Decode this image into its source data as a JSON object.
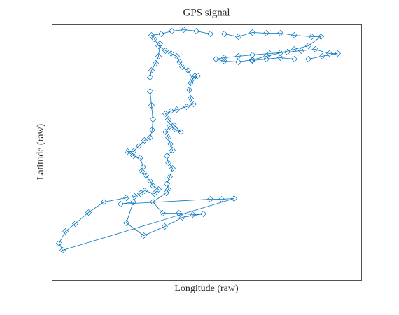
{
  "chart_data": {
    "type": "line",
    "title": "GPS  signal",
    "x_label": "Longitude  (raw)",
    "y_label": "Latitude  (raw)",
    "xlim": [
      0,
      442
    ],
    "ylim": [
      0,
      366
    ],
    "grid": false,
    "marker": "diamond",
    "series": [
      {
        "color": "#0072bd",
        "x": [
          154,
          152,
          148,
          142,
          140,
          140,
          142,
          144,
          143,
          140,
          132,
          124,
          116,
          108,
          116,
          126,
          130,
          128,
          134,
          140,
          144,
          152,
          146,
          132,
          126,
          118,
          106,
          74,
          52,
          33,
          19,
          10,
          15,
          260,
          242,
          226,
          98,
          116,
          106,
          131,
          161,
          186,
          216,
          201,
          181,
          158,
          144,
          163,
          166,
          164,
          168,
          172,
          166,
          164,
          172,
          169,
          166,
          162,
          168,
          176,
          184,
          174,
          166,
          162,
          170,
          178,
          192,
          202,
          198,
          196,
          198,
          204,
          208,
          201,
          194,
          186,
          182,
          178,
          170,
          162,
          152,
          146,
          142,
          156,
          171,
          188,
          206,
          226,
          246,
          266,
          286,
          306,
          326,
          346,
          371,
          384,
          366,
          346,
          326,
          306,
          286,
          266,
          246,
          234,
          246,
          266,
          286,
          311,
          336,
          356,
          376,
          396,
          408,
          386,
          366,
          346,
          326,
          306,
          286
        ],
        "values": [
          338,
          320,
          310,
          300,
          290,
          270,
          250,
          230,
          215,
          204,
          200,
          192,
          184,
          184,
          178,
          175,
          162,
          156,
          150,
          142,
          135,
          130,
          124,
          128,
          124,
          120,
          118,
          112,
          97,
          81,
          70,
          53,
          43,
          117,
          116,
          116,
          109,
          112,
          82,
          64,
          77,
          90,
          95,
          94,
          96,
          96,
          112,
          125,
          130,
          138,
          148,
          160,
          168,
          178,
          186,
          195,
          204,
          212,
          220,
          216,
          212,
          222,
          230,
          238,
          242,
          244,
          248,
          252,
          260,
          272,
          282,
          292,
          292,
          288,
          300,
          305,
          312,
          320,
          324,
          328,
          335,
          345,
          350,
          352,
          356,
          358,
          356,
          352,
          352,
          348,
          354,
          353,
          353,
          350,
          348,
          348,
          335,
          330,
          325,
          320,
          315,
          312,
          313,
          316,
          318,
          320,
          322,
          324,
          326,
          328,
          330,
          324,
          324,
          320,
          316,
          316,
          318,
          316,
          314
        ]
      }
    ]
  }
}
